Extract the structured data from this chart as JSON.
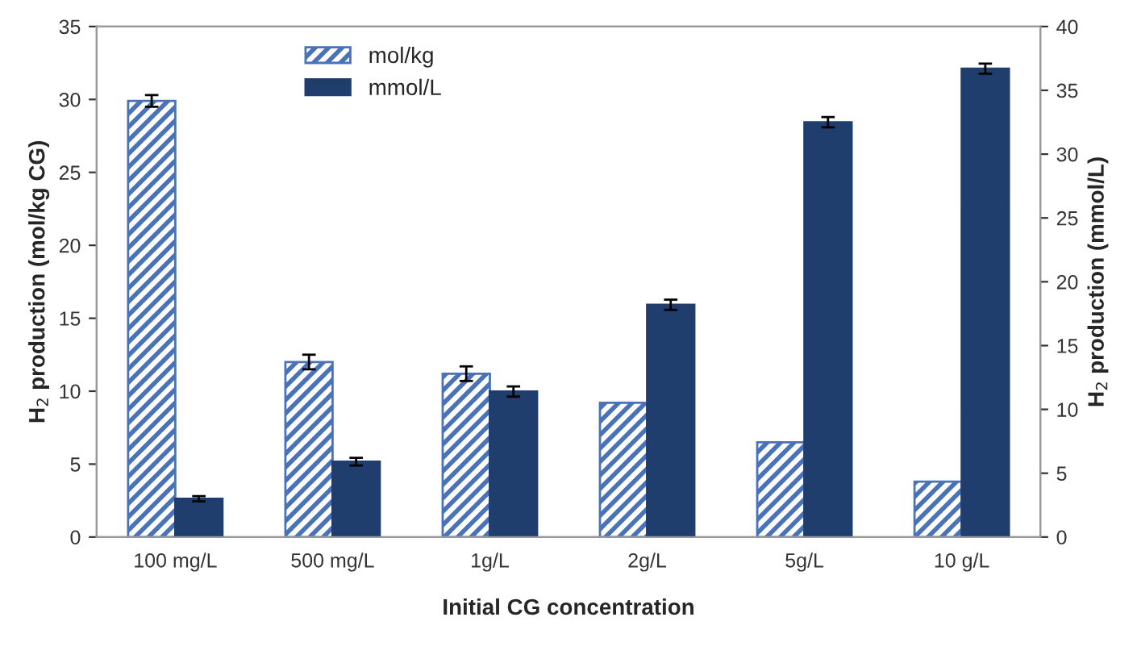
{
  "chart_data": {
    "type": "bar",
    "xlabel": "Initial CG concentration",
    "ylabel": "H$_{2}$ production (mol/kg CG)",
    "y2label": "H$_{2}$ production (mmol/L)",
    "categories": [
      "100 mg/L",
      "500 mg/L",
      "1g/L",
      "2g/L",
      "5g/L",
      "10 g/L"
    ],
    "series": [
      {
        "name": "mol/kg",
        "color": "#4a72b8",
        "values": [
          29.9,
          12.0,
          11.2,
          9.2,
          6.5,
          3.8
        ],
        "errors": [
          0.4,
          0.5,
          0.5,
          null,
          null,
          null
        ]
      },
      {
        "name": "mmol/L",
        "color": "#1f3e6e",
        "axis": "y2",
        "values": [
          3.0,
          5.9,
          11.4,
          18.2,
          32.5,
          36.7
        ],
        "errors": [
          0.2,
          0.3,
          0.4,
          0.4,
          0.4,
          0.4
        ]
      }
    ],
    "ylim": [
      0,
      35
    ],
    "yticks": [
      0,
      5,
      10,
      15,
      20,
      25,
      30,
      35
    ],
    "y2lim": [
      0,
      40
    ],
    "y2ticks": [
      0,
      5,
      10,
      15,
      20,
      25,
      30,
      35,
      40
    ],
    "grid": false,
    "legend": "top left"
  }
}
